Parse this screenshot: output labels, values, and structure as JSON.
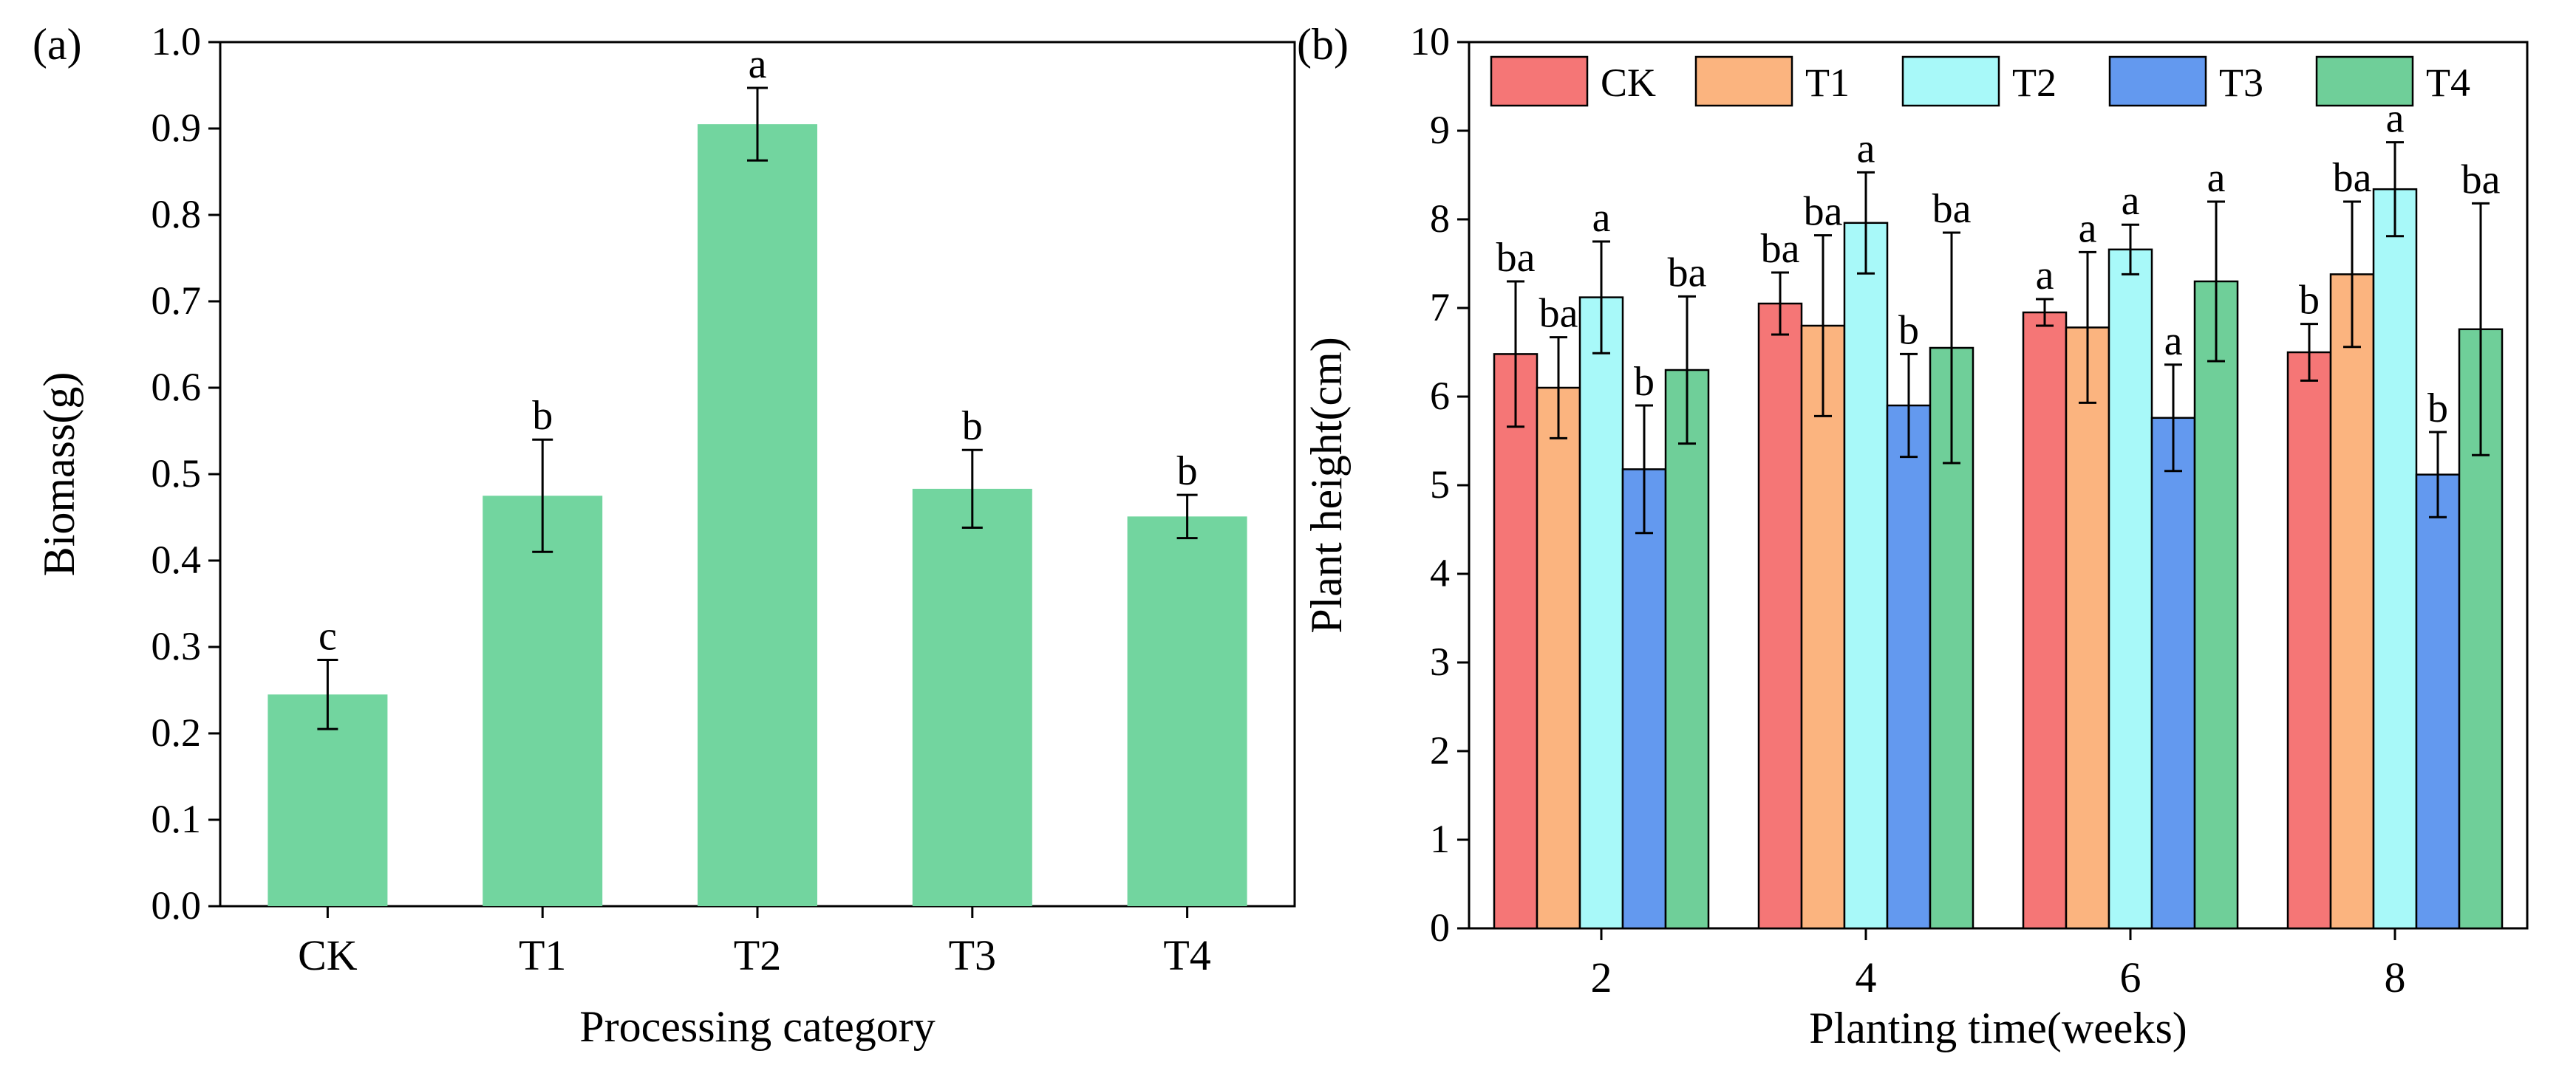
{
  "chart_data": [
    {
      "type": "bar",
      "panel_label": "(a)",
      "title": "",
      "xlabel": "Processing category",
      "ylabel": "Biomass(g)",
      "ylim": [
        0,
        1.0
      ],
      "yticks": [
        "0.0",
        "0.1",
        "0.2",
        "0.3",
        "0.4",
        "0.5",
        "0.6",
        "0.7",
        "0.8",
        "0.9",
        "1.0"
      ],
      "categories": [
        "CK",
        "T1",
        "T2",
        "T3",
        "T4"
      ],
      "values": [
        0.245,
        0.475,
        0.905,
        0.483,
        0.451
      ],
      "errors": [
        0.04,
        0.065,
        0.042,
        0.045,
        0.025
      ],
      "letters": [
        "c",
        "b",
        "a",
        "b",
        "b"
      ],
      "color": "#72d59f"
    },
    {
      "type": "bar",
      "panel_label": "(b)",
      "title": "",
      "xlabel": "Planting time(weeks)",
      "ylabel": "Plant height(cm)",
      "ylim": [
        0,
        10
      ],
      "yticks": [
        "0",
        "1",
        "2",
        "3",
        "4",
        "5",
        "6",
        "7",
        "8",
        "9",
        "10"
      ],
      "categories": [
        "2",
        "4",
        "6",
        "8"
      ],
      "legend_position": "top",
      "series": [
        {
          "name": "CK",
          "color": "#f57676",
          "values": [
            6.48,
            7.05,
            6.95,
            6.5
          ],
          "errors": [
            0.82,
            0.35,
            0.15,
            0.32
          ],
          "letters": [
            "ba",
            "ba",
            "a",
            "b"
          ]
        },
        {
          "name": "T1",
          "color": "#fbb47f",
          "values": [
            6.1,
            6.8,
            6.78,
            7.38
          ],
          "errors": [
            0.57,
            1.02,
            0.85,
            0.82
          ],
          "letters": [
            "ba",
            "ba",
            "a",
            "ba"
          ]
        },
        {
          "name": "T2",
          "color": "#a8f9f9",
          "values": [
            7.12,
            7.96,
            7.66,
            8.34
          ],
          "errors": [
            0.63,
            0.57,
            0.28,
            0.53
          ],
          "letters": [
            "a",
            "a",
            "a",
            "a"
          ]
        },
        {
          "name": "T3",
          "color": "#6399ef",
          "values": [
            5.18,
            5.9,
            5.76,
            5.12
          ],
          "errors": [
            0.72,
            0.58,
            0.6,
            0.48
          ],
          "letters": [
            "b",
            "b",
            "a",
            "b"
          ]
        },
        {
          "name": "T4",
          "color": "#6fcf99",
          "values": [
            6.3,
            6.55,
            7.3,
            6.76
          ],
          "errors": [
            0.83,
            1.3,
            0.9,
            1.42
          ],
          "letters": [
            "ba",
            "ba",
            "a",
            "ba"
          ]
        }
      ]
    }
  ]
}
